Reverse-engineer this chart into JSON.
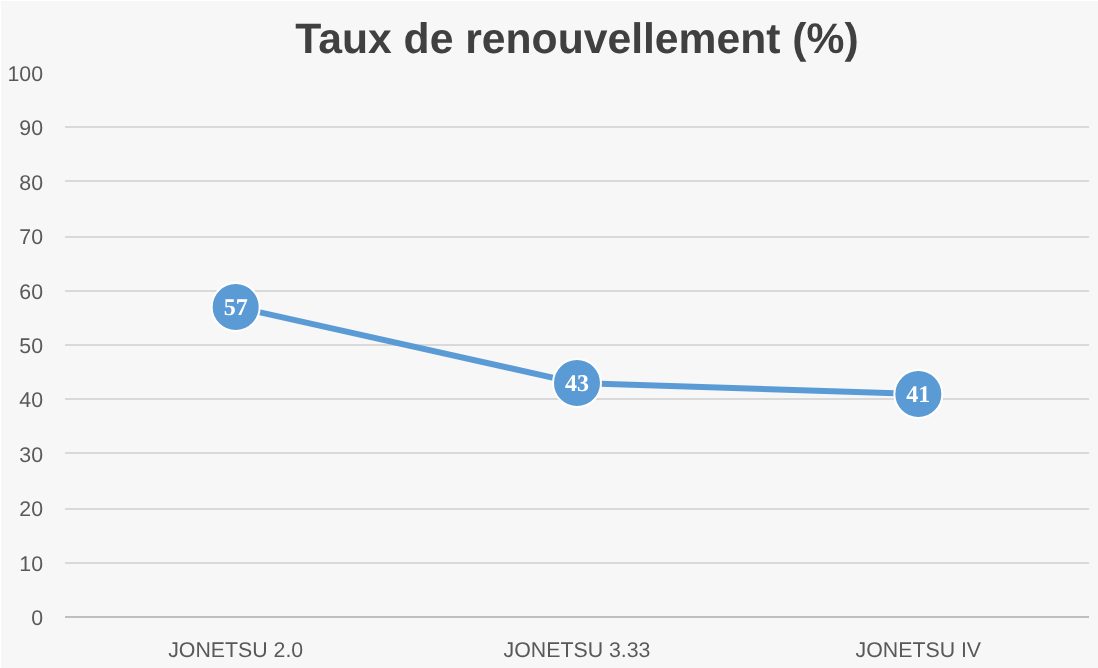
{
  "chart_data": {
    "type": "line",
    "title": "Taux de renouvellement (%)",
    "categories": [
      "JONETSU 2.0",
      "JONETSU 3.33",
      "JONETSU IV"
    ],
    "series": [
      {
        "color": "#5b9bd5",
        "values": [
          57,
          43,
          41
        ]
      }
    ],
    "ylim": [
      0,
      100
    ],
    "yticks": [
      0,
      10,
      20,
      30,
      40,
      50,
      60,
      70,
      80,
      90,
      100
    ],
    "grid": "y",
    "marker": "circle",
    "data_labels": true
  }
}
